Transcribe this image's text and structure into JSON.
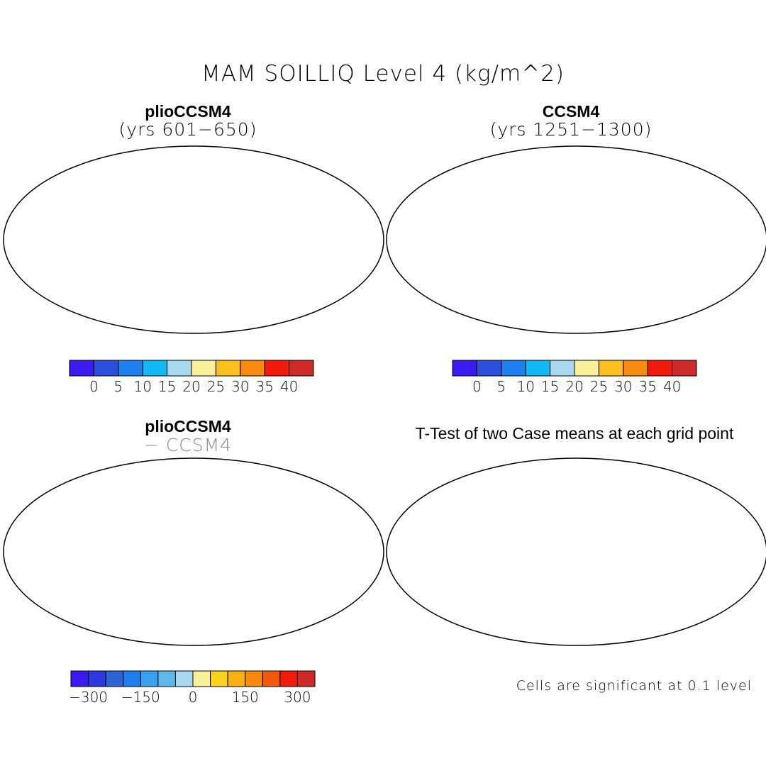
{
  "figure": {
    "title": "MAM SOILLIQ Level 4 (kg/m^2)",
    "panels": [
      {
        "id": "plio",
        "title": "plioCCSM4",
        "subtitle": "(yrs 601−650)"
      },
      {
        "id": "ccsm",
        "title": "CCSM4",
        "subtitle": "(yrs 1251−1300)"
      },
      {
        "id": "diff",
        "title": "plioCCSM4",
        "subtitle": "− CCSM4"
      },
      {
        "id": "ttest",
        "title": "T-Test of two Case means at each grid point",
        "note": "Cells are significant at 0.1 level"
      }
    ]
  },
  "colorbars": {
    "abs": {
      "colors": [
        "#3a1af0",
        "#2c4fe0",
        "#1e7ff0",
        "#12b8f5",
        "#a7d8f0",
        "#fbf09a",
        "#fbbf1e",
        "#f98c10",
        "#f21a0a",
        "#cf2a2a"
      ],
      "ticks": [
        "0",
        "5",
        "10",
        "15",
        "20",
        "25",
        "30",
        "35",
        "40"
      ]
    },
    "diff": {
      "colors": [
        "#3a1af0",
        "#2a3ae0",
        "#2f63d8",
        "#1e7ff0",
        "#3aa0f0",
        "#5fb8ea",
        "#a7d8f0",
        "#fbf09a",
        "#fbd21e",
        "#fbaf12",
        "#f88a10",
        "#f25a0a",
        "#f21a0a",
        "#cf2a2a"
      ],
      "ticks": [
        "−300",
        "−150",
        "0",
        "150",
        "300"
      ]
    }
  }
}
